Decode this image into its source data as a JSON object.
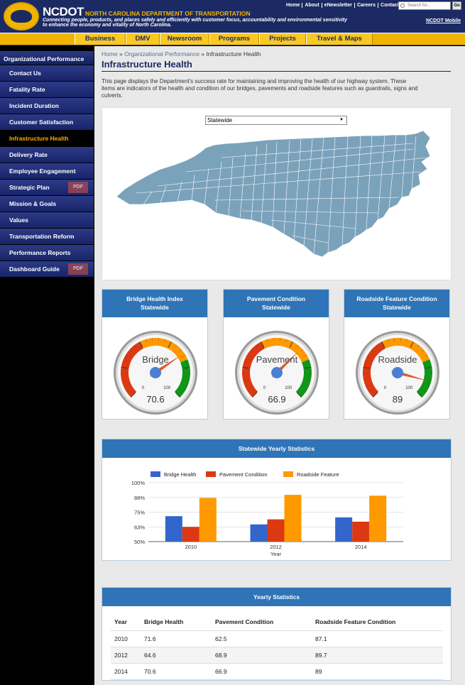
{
  "header": {
    "brand": "NCDOT",
    "dept": "NORTH CAROLINA DEPARTMENT OF TRANSPORTATION",
    "tagline": "Connecting people, products, and places safely and efficiently with customer focus, accountability and environmental sensitivity to enhance the economy and vitality of North Carolina.",
    "top_links": [
      "Home",
      "About",
      "eNewsletter",
      "Careers",
      "Contact"
    ],
    "search_placeholder": "Search for...",
    "search_button": "Go",
    "mobile_link": "NCDOT Mobile",
    "colors": {
      "navy": "#1c2a63",
      "gold": "#f0b400"
    }
  },
  "nav": {
    "items": [
      "Business",
      "DMV",
      "Newsroom",
      "Programs",
      "Projects",
      "Travel & Maps"
    ]
  },
  "sidebar": {
    "heading": "Organizational Performance",
    "items": [
      {
        "label": "Contact Us"
      },
      {
        "label": "Fatality Rate"
      },
      {
        "label": "Incident Duration"
      },
      {
        "label": "Customer Satisfaction"
      },
      {
        "label": "Infrastructure Health",
        "active": true
      },
      {
        "label": "Delivery Rate"
      },
      {
        "label": "Employee Engagement"
      },
      {
        "label": "Strategic Plan",
        "icon": "pdf-icon"
      },
      {
        "label": "Mission & Goals"
      },
      {
        "label": "Values"
      },
      {
        "label": "Transportation Reform"
      },
      {
        "label": "Performance Reports"
      },
      {
        "label": "Dashboard Guide",
        "icon": "pdf-icon"
      }
    ]
  },
  "breadcrumb": {
    "home": "Home",
    "sep": " » ",
    "section": "Organizational Performance",
    "current": "Infrastructure Health"
  },
  "page": {
    "title": "Infrastructure Health",
    "intro": "This page displays the Department's success rate for maintaining and improving the health of our highway system. These items are indicators of the health and condition of our bridges, pavements and roadside features such as guardrails, signs and culverts."
  },
  "map": {
    "selected_region": "Statewide",
    "fill_color": "#7ba2bb"
  },
  "gauges": [
    {
      "title": "Bridge Health Index",
      "subtitle": "Statewide",
      "label": "Bridge",
      "value": 70.6,
      "display": "70.6",
      "min_label": "0",
      "max_label": "100"
    },
    {
      "title": "Pavement Condition",
      "subtitle": "Statewide",
      "label": "Pavement",
      "value": 66.9,
      "display": "66.9",
      "min_label": "0",
      "max_label": "100"
    },
    {
      "title": "Roadside Feature Condition",
      "subtitle": "Statewide",
      "label": "Roadside",
      "value": 89,
      "display": "89",
      "min_label": "0",
      "max_label": "100"
    }
  ],
  "chart_card": {
    "title": "Statewide Yearly Statistics"
  },
  "chart_data": {
    "type": "bar",
    "categories": [
      "2010",
      "2012",
      "2014"
    ],
    "series": [
      {
        "name": "Bridge Health",
        "color": "#3366cc",
        "values": [
          71.6,
          64.6,
          70.6
        ]
      },
      {
        "name": "Pavement Condition",
        "color": "#dc3912",
        "values": [
          62.5,
          68.9,
          66.9
        ]
      },
      {
        "name": "Roadside Feature",
        "color": "#ff9900",
        "values": [
          87.1,
          89.7,
          89
        ]
      }
    ],
    "yticks": [
      "50%",
      "63%",
      "75%",
      "88%",
      "100%"
    ],
    "ylim": [
      50,
      100
    ],
    "xlabel": "Year",
    "legend": "top"
  },
  "table_card": {
    "title": "Yearly Statistics",
    "headers": [
      "Year",
      "Bridge Health",
      "Pavement Condition",
      "Roadside Feature Condition"
    ],
    "rows": [
      [
        "2010",
        "71.6",
        "62.5",
        "87.1"
      ],
      [
        "2012",
        "64.6",
        "68.9",
        "89.7"
      ],
      [
        "2014",
        "70.6",
        "66.9",
        "89"
      ]
    ]
  }
}
